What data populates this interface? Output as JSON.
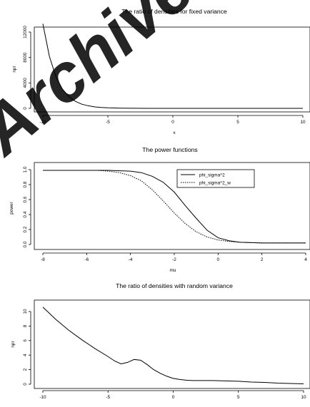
{
  "watermark": {
    "text": "Archive",
    "color": "#c8c8c8"
  },
  "chart_data": [
    {
      "type": "line",
      "title": "The ratio of densities for fixed variance",
      "xlabel": "x",
      "ylabel": "npr",
      "xlim": [
        -10,
        10
      ],
      "ylim": [
        0,
        13500
      ],
      "xticks": [
        -10,
        -5,
        0,
        5,
        10
      ],
      "yticks": [
        0,
        4000,
        8000,
        12000
      ],
      "series": [
        {
          "x": [
            -10,
            -9.5,
            -9,
            -8.5,
            -8,
            -7.5,
            -7,
            -6.5,
            -6,
            -5.5,
            -5,
            -4,
            -3,
            -2,
            0,
            5,
            10
          ],
          "values": [
            13300,
            8200,
            5000,
            3050,
            1850,
            1100,
            650,
            400,
            230,
            140,
            80,
            30,
            10,
            4,
            1,
            0,
            0
          ],
          "style": "solid"
        }
      ]
    },
    {
      "type": "line",
      "title": "The power functions",
      "xlabel": "mu",
      "ylabel": "power",
      "xlim": [
        -8,
        4
      ],
      "ylim": [
        0,
        1
      ],
      "xticks": [
        -8,
        -6,
        -4,
        -2,
        0,
        2,
        4
      ],
      "yticks": [
        0.0,
        0.2,
        0.4,
        0.6,
        0.8,
        1.0
      ],
      "legend": "top-right",
      "series": [
        {
          "name": "phi_sigma^2",
          "style": "solid",
          "x": [
            -8,
            -5,
            -4,
            -3.5,
            -3,
            -2.5,
            -2,
            -1.5,
            -1,
            -0.5,
            0,
            0.5,
            1,
            2,
            4
          ],
          "values": [
            0.99,
            0.99,
            0.98,
            0.96,
            0.91,
            0.83,
            0.7,
            0.52,
            0.35,
            0.19,
            0.09,
            0.05,
            0.03,
            0.02,
            0.02
          ]
        },
        {
          "name": "phi_sigma^2_w",
          "style": "dotted",
          "x": [
            -8,
            -5.5,
            -5,
            -4.5,
            -4,
            -3.5,
            -3,
            -2.5,
            -2,
            -1.5,
            -1,
            -0.5,
            0,
            0.5,
            1,
            2,
            4
          ],
          "values": [
            0.99,
            0.99,
            0.98,
            0.96,
            0.92,
            0.85,
            0.73,
            0.58,
            0.42,
            0.28,
            0.17,
            0.1,
            0.06,
            0.04,
            0.03,
            0.02,
            0.02
          ]
        }
      ]
    },
    {
      "type": "line",
      "title": "The ratio of densities with random  variance",
      "xlabel": "",
      "ylabel": "npr",
      "xlim": [
        -10,
        10
      ],
      "ylim": [
        0,
        11
      ],
      "xticks": [
        -10,
        -5,
        0,
        5,
        10
      ],
      "yticks": [
        0,
        2,
        4,
        6,
        8,
        10
      ],
      "series": [
        {
          "style": "solid",
          "x": [
            -10,
            -9,
            -8,
            -7,
            -6,
            -5,
            -4.5,
            -4,
            -3.5,
            -3,
            -2.5,
            -2,
            -1.5,
            -1,
            -0.5,
            0,
            0.5,
            1,
            1.5,
            2,
            3,
            4,
            5,
            6,
            7,
            8,
            9,
            10
          ],
          "values": [
            10.6,
            8.9,
            7.4,
            6.1,
            4.9,
            3.8,
            3.2,
            2.8,
            3.0,
            3.4,
            3.3,
            2.7,
            2.0,
            1.5,
            1.1,
            0.8,
            0.65,
            0.55,
            0.5,
            0.5,
            0.5,
            0.45,
            0.4,
            0.3,
            0.25,
            0.15,
            0.1,
            0.05
          ]
        }
      ]
    }
  ]
}
